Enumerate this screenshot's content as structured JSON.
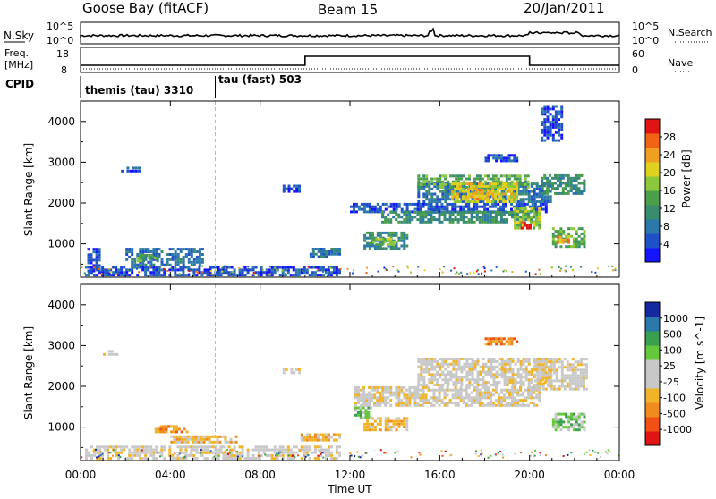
{
  "header": {
    "station": "Goose Bay (fitACF)",
    "beam": "Beam 15",
    "date": "20/Jan/2011"
  },
  "noise_panel": {
    "left_label": "N.Sky",
    "right_label": "N.Search",
    "left_ticks": [
      "10^5",
      "10^0"
    ],
    "right_ticks": [
      "10^5",
      "10^0"
    ]
  },
  "freq_panel": {
    "left_label_1": "Freq.",
    "left_label_2": "[MHz]",
    "right_label": "Nave",
    "left_ticks": [
      "18",
      "8"
    ],
    "right_ticks": [
      "60",
      "0"
    ]
  },
  "cpid": {
    "label": "CPID",
    "mode1": "themis (tau) 3310",
    "mode2": "tau (fast) 503",
    "switch_time_hours": 6.0
  },
  "colors": {
    "power": [
      "#1414ff",
      "#1e50c8",
      "#2b78aa",
      "#3a8c6e",
      "#4aa04a",
      "#8cc83c",
      "#e0d020",
      "#f0a020",
      "#f06414",
      "#e01414"
    ],
    "velocity": [
      "#e01414",
      "#f05014",
      "#f08c1e",
      "#f0b428",
      "#c8c8c8",
      "#c8c8c8",
      "#64c83c",
      "#3aa050",
      "#2b78aa",
      "#1428a0"
    ]
  },
  "chart_data": [
    {
      "type": "heatmap",
      "name": "power",
      "ylabel": "Slant Range [km]",
      "xlabel": "Time UT",
      "xlim": [
        0,
        24
      ],
      "ylim": [
        180,
        4500
      ],
      "yticks": [
        1000,
        2000,
        3000,
        4000
      ],
      "colorbar_label": "Power [dB]",
      "colorbar_ticks": [
        "4",
        "8",
        "12",
        "16",
        "20",
        "24",
        "28"
      ],
      "regions": [
        {
          "t0": 0.2,
          "t1": 11.6,
          "r0": 200,
          "r1": 450,
          "level": 1
        },
        {
          "t0": 2.0,
          "t1": 5.5,
          "r0": 450,
          "r1": 900,
          "level": 2
        },
        {
          "t0": 2.5,
          "t1": 3.5,
          "r0": 550,
          "r1": 750,
          "level": 4
        },
        {
          "t0": 0.3,
          "t1": 0.9,
          "r0": 300,
          "r1": 900,
          "level": 1
        },
        {
          "t0": 1.8,
          "t1": 2.8,
          "r0": 2750,
          "r1": 2900,
          "level": 1
        },
        {
          "t0": 9.0,
          "t1": 9.8,
          "r0": 2250,
          "r1": 2450,
          "level": 1
        },
        {
          "t0": 10.2,
          "t1": 11.6,
          "r0": 650,
          "r1": 900,
          "level": 2
        },
        {
          "t0": 12.6,
          "t1": 14.6,
          "r0": 850,
          "r1": 1300,
          "level": 3
        },
        {
          "t0": 13.0,
          "t1": 14.0,
          "r0": 950,
          "r1": 1150,
          "level": 5
        },
        {
          "t0": 12.0,
          "t1": 20.8,
          "r0": 1750,
          "r1": 2000,
          "level": 1
        },
        {
          "t0": 13.4,
          "t1": 20.5,
          "r0": 1500,
          "r1": 1800,
          "level": 3
        },
        {
          "t0": 15.0,
          "t1": 21.0,
          "r0": 2000,
          "r1": 2500,
          "level": 2
        },
        {
          "t0": 15.0,
          "t1": 20.0,
          "r0": 2350,
          "r1": 2700,
          "level": 4
        },
        {
          "t0": 16.5,
          "t1": 19.5,
          "r0": 2000,
          "r1": 2500,
          "level": 6
        },
        {
          "t0": 17.4,
          "t1": 18.2,
          "r0": 2000,
          "r1": 2350,
          "level": 7
        },
        {
          "t0": 19.3,
          "t1": 20.5,
          "r0": 1350,
          "r1": 1900,
          "level": 5
        },
        {
          "t0": 19.6,
          "t1": 20.1,
          "r0": 1350,
          "r1": 1550,
          "level": 9
        },
        {
          "t0": 20.5,
          "t1": 22.5,
          "r0": 2200,
          "r1": 2700,
          "level": 3
        },
        {
          "t0": 21.0,
          "t1": 22.5,
          "r0": 900,
          "r1": 1400,
          "level": 4
        },
        {
          "t0": 21.2,
          "t1": 21.8,
          "r0": 1000,
          "r1": 1200,
          "level": 7
        },
        {
          "t0": 18.0,
          "t1": 19.5,
          "r0": 3000,
          "r1": 3200,
          "level": 1
        },
        {
          "t0": 20.5,
          "t1": 21.5,
          "r0": 3500,
          "r1": 4400,
          "level": 1
        }
      ]
    },
    {
      "type": "heatmap",
      "name": "velocity",
      "ylabel": "Slant Range [km]",
      "xlabel": "Time UT",
      "xlim": [
        0,
        24
      ],
      "ylim": [
        180,
        4500
      ],
      "yticks": [
        1000,
        2000,
        3000,
        4000
      ],
      "xticks": [
        "00:00",
        "04:00",
        "08:00",
        "12:00",
        "16:00",
        "20:00",
        "00:00"
      ],
      "colorbar_label": "Velocity [m s^-1]",
      "colorbar_ticks": [
        "-1000",
        "-500",
        "-100",
        "-25",
        "25",
        "100",
        "500",
        "1000"
      ],
      "regions": [
        {
          "t0": 0.2,
          "t1": 11.6,
          "r0": 200,
          "r1": 550,
          "level": 4
        },
        {
          "t0": 3.3,
          "t1": 4.8,
          "r0": 850,
          "r1": 1050,
          "level": 2
        },
        {
          "t0": 4.0,
          "t1": 7.0,
          "r0": 600,
          "r1": 800,
          "level": 3
        },
        {
          "t0": 9.8,
          "t1": 11.6,
          "r0": 650,
          "r1": 850,
          "level": 3
        },
        {
          "t0": 9.0,
          "t1": 9.8,
          "r0": 2300,
          "r1": 2450,
          "level": 4
        },
        {
          "t0": 12.6,
          "t1": 14.6,
          "r0": 900,
          "r1": 1250,
          "level": 3
        },
        {
          "t0": 12.2,
          "t1": 13.0,
          "r0": 1200,
          "r1": 1500,
          "level": 6
        },
        {
          "t0": 12.2,
          "t1": 20.5,
          "r0": 1500,
          "r1": 2000,
          "level": 4
        },
        {
          "t0": 15.0,
          "t1": 21.0,
          "r0": 2000,
          "r1": 2700,
          "level": 4
        },
        {
          "t0": 20.2,
          "t1": 22.6,
          "r0": 1900,
          "r1": 2700,
          "level": 4
        },
        {
          "t0": 21.0,
          "t1": 22.5,
          "r0": 900,
          "r1": 1350,
          "level": 6
        },
        {
          "t0": 1.0,
          "t1": 1.8,
          "r0": 2750,
          "r1": 2900,
          "level": 4
        },
        {
          "t0": 18.0,
          "t1": 19.5,
          "r0": 3000,
          "r1": 3200,
          "level": 2
        }
      ]
    }
  ],
  "time_axis": {
    "ticks": [
      "00:00",
      "04:00",
      "08:00",
      "12:00",
      "16:00",
      "20:00",
      "00:00"
    ],
    "label": "Time UT"
  }
}
